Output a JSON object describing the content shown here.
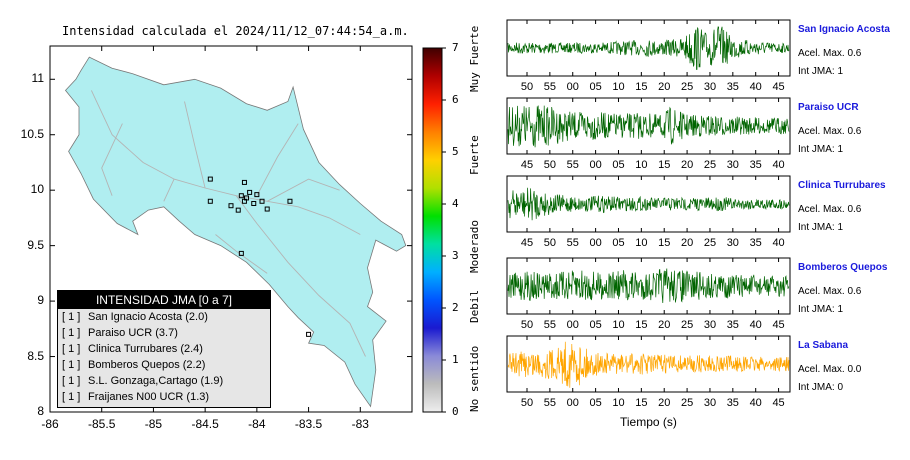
{
  "chart_data": [
    {
      "type": "map",
      "title": "Intensidad calculada el 2024/11/12_07:44:54_a.m.",
      "x_ticks": [
        "-86",
        "-85.5",
        "-85",
        "-84.5",
        "-84",
        "-83.5",
        "-83"
      ],
      "y_ticks": [
        "11",
        "10.5",
        "10",
        "9.5",
        "9",
        "8.5",
        "8"
      ],
      "xlim": [
        -86,
        -82.5
      ],
      "ylim": [
        8,
        11.3
      ],
      "land_color": "#b0eef0",
      "legend": {
        "title": "INTENSIDAD JMA [0 a 7]",
        "rows": [
          {
            "code": "[ 1 ]",
            "text": "San Ignacio Acosta (2.0)"
          },
          {
            "code": "[ 1 ]",
            "text": "Paraiso UCR (3.7)"
          },
          {
            "code": "[ 1 ]",
            "text": "Clinica Turrubares (2.4)"
          },
          {
            "code": "[ 1 ]",
            "text": "Bomberos Quepos (2.2)"
          },
          {
            "code": "[ 1 ]",
            "text": "S.L. Gonzaga,Cartago (1.9)"
          },
          {
            "code": "[ 1 ]",
            "text": "Fraijanes N00 UCR (1.3)"
          }
        ]
      },
      "stations": [
        {
          "lon": -84.45,
          "lat": 10.1
        },
        {
          "lon": -84.12,
          "lat": 10.07
        },
        {
          "lon": -84.07,
          "lat": 9.98
        },
        {
          "lon": -84.1,
          "lat": 9.93
        },
        {
          "lon": -84.15,
          "lat": 9.95
        },
        {
          "lon": -84.0,
          "lat": 9.96
        },
        {
          "lon": -84.03,
          "lat": 9.88
        },
        {
          "lon": -83.95,
          "lat": 9.9
        },
        {
          "lon": -84.12,
          "lat": 9.9
        },
        {
          "lon": -84.25,
          "lat": 9.86
        },
        {
          "lon": -84.45,
          "lat": 9.9
        },
        {
          "lon": -83.68,
          "lat": 9.9
        },
        {
          "lon": -83.9,
          "lat": 9.83
        },
        {
          "lon": -84.18,
          "lat": 9.82
        },
        {
          "lon": -84.15,
          "lat": 9.43
        },
        {
          "lon": -83.5,
          "lat": 8.7
        }
      ]
    },
    {
      "type": "colorbar",
      "ticks": [
        "0",
        "1",
        "2",
        "3",
        "4",
        "5",
        "6",
        "7"
      ],
      "categories": [
        "No sentido",
        "Debil",
        "Moderado",
        "Fuerte",
        "Muy Fuerte"
      ],
      "stops": [
        "#eeeeee",
        "#bcbcbc",
        "#8a8ad8",
        "#1a1ad0",
        "#0055ff",
        "#00b0ff",
        "#00e0a0",
        "#00e000",
        "#b0e000",
        "#ffd000",
        "#ff8000",
        "#ff2000",
        "#b00000",
        "#400000"
      ]
    },
    {
      "type": "line",
      "xlabel": "Tiempo (s)",
      "panels": [
        {
          "station": "San Ignacio Acosta",
          "accel": "Acel. Max. 0.6",
          "intensity": "Int JMA: 1",
          "color": "#006400",
          "x_ticks": [
            "50",
            "55",
            "00",
            "05",
            "10",
            "15",
            "20",
            "25",
            "30",
            "35",
            "40",
            "45"
          ],
          "amplitude_profile": [
            0.2,
            0.25,
            0.22,
            0.25,
            0.2,
            0.2,
            0.22,
            0.2,
            0.22,
            0.25,
            0.3,
            0.3,
            0.35,
            0.3,
            0.35,
            0.4,
            1.0,
            0.6,
            1.0,
            0.5,
            0.35,
            0.3,
            0.25,
            0.2,
            0.2
          ]
        },
        {
          "station": "Paraiso UCR",
          "accel": "Acel. Max. 0.6",
          "intensity": "Int JMA: 1",
          "color": "#006400",
          "x_ticks": [
            "45",
            "50",
            "55",
            "00",
            "05",
            "10",
            "15",
            "20",
            "25",
            "30",
            "35",
            "40"
          ],
          "amplitude_profile": [
            0.8,
            0.85,
            0.9,
            0.85,
            0.75,
            0.6,
            0.55,
            0.6,
            0.55,
            0.5,
            0.5,
            0.55,
            0.5,
            0.45,
            0.8,
            0.5,
            0.45,
            0.45,
            0.4,
            0.4,
            0.35,
            0.35,
            0.3,
            0.35,
            0.3
          ]
        },
        {
          "station": "Clinica Turrubares",
          "accel": "Acel. Max. 0.6",
          "intensity": "Int JMA: 1",
          "color": "#006400",
          "x_ticks": [
            "45",
            "50",
            "55",
            "00",
            "05",
            "10",
            "15",
            "20",
            "25",
            "30",
            "35",
            "40"
          ],
          "amplitude_profile": [
            0.6,
            0.55,
            0.7,
            0.5,
            0.4,
            0.35,
            0.3,
            0.3,
            0.35,
            0.3,
            0.28,
            0.3,
            0.25,
            0.25,
            0.3,
            0.25,
            0.28,
            0.25,
            0.3,
            0.25,
            0.2,
            0.25,
            0.22,
            0.2,
            0.2
          ]
        },
        {
          "station": "Bomberos Quepos",
          "accel": "Acel. Max. 0.6",
          "intensity": "Int JMA: 1",
          "color": "#006400",
          "x_ticks": [
            "50",
            "55",
            "00",
            "05",
            "10",
            "15",
            "20",
            "25",
            "30",
            "35",
            "40",
            "45"
          ],
          "amplitude_profile": [
            0.5,
            0.55,
            0.6,
            0.55,
            0.6,
            0.55,
            0.7,
            0.6,
            0.55,
            0.6,
            0.65,
            0.6,
            0.55,
            0.7,
            0.75,
            0.65,
            0.6,
            0.55,
            0.5,
            0.5,
            0.45,
            0.45,
            0.4,
            0.45,
            0.4
          ]
        },
        {
          "station": "La Sabana",
          "accel": "Acel. Max. 0.0",
          "intensity": "Int JMA: 0",
          "color": "#ffa500",
          "x_ticks": [
            "50",
            "55",
            "00",
            "05",
            "10",
            "15",
            "20",
            "25",
            "30",
            "35",
            "40",
            "45"
          ],
          "amplitude_profile": [
            0.45,
            0.5,
            0.55,
            0.6,
            0.6,
            1.0,
            0.9,
            0.5,
            0.45,
            0.4,
            0.4,
            0.45,
            0.4,
            0.4,
            0.35,
            0.4,
            0.35,
            0.35,
            0.3,
            0.35,
            0.3,
            0.3,
            0.28,
            0.3,
            0.28
          ]
        }
      ]
    }
  ]
}
